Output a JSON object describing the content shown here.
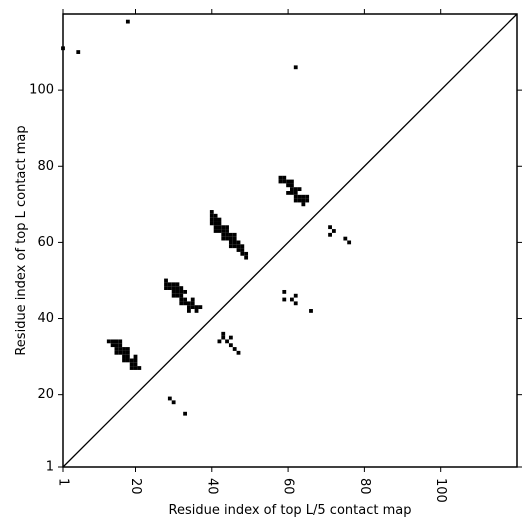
{
  "chart_data": {
    "type": "scatter",
    "xlabel": "Residue index of top L/5 contact map",
    "ylabel": "Residue index of top L contact map",
    "xlim": [
      1,
      120
    ],
    "ylim": [
      1,
      120
    ],
    "x_ticks": [
      1,
      20,
      40,
      60,
      80,
      100
    ],
    "y_ticks": [
      1,
      20,
      40,
      60,
      80,
      100
    ],
    "x_tick_labels": [
      "1",
      "20",
      "40",
      "60",
      "80",
      "100"
    ],
    "y_tick_labels": [
      "1",
      "20",
      "40",
      "60",
      "80",
      "100"
    ],
    "x_tick_rotation_deg": 90,
    "diagonal_line": true,
    "grid": false,
    "marker_color": "#000000",
    "series": [
      {
        "values": [
          [
            1,
            111
          ],
          [
            5,
            110
          ],
          [
            18,
            118
          ],
          [
            62,
            106
          ],
          [
            13,
            34
          ],
          [
            14,
            34
          ],
          [
            15,
            34
          ],
          [
            16,
            34
          ],
          [
            14,
            33
          ],
          [
            15,
            33
          ],
          [
            16,
            33
          ],
          [
            15,
            32
          ],
          [
            16,
            32
          ],
          [
            17,
            32
          ],
          [
            18,
            32
          ],
          [
            15,
            31
          ],
          [
            16,
            31
          ],
          [
            17,
            31
          ],
          [
            18,
            31
          ],
          [
            17,
            30
          ],
          [
            18,
            30
          ],
          [
            20,
            30
          ],
          [
            17,
            29
          ],
          [
            18,
            29
          ],
          [
            19,
            29
          ],
          [
            20,
            29
          ],
          [
            19,
            28
          ],
          [
            20,
            28
          ],
          [
            19,
            27
          ],
          [
            20,
            27
          ],
          [
            21,
            27
          ],
          [
            28,
            50
          ],
          [
            28,
            49
          ],
          [
            29,
            49
          ],
          [
            30,
            49
          ],
          [
            31,
            49
          ],
          [
            28,
            48
          ],
          [
            29,
            48
          ],
          [
            30,
            48
          ],
          [
            31,
            48
          ],
          [
            32,
            48
          ],
          [
            30,
            47
          ],
          [
            31,
            47
          ],
          [
            32,
            47
          ],
          [
            33,
            47
          ],
          [
            30,
            46
          ],
          [
            31,
            46
          ],
          [
            32,
            46
          ],
          [
            32,
            45
          ],
          [
            33,
            45
          ],
          [
            35,
            45
          ],
          [
            32,
            44
          ],
          [
            33,
            44
          ],
          [
            34,
            44
          ],
          [
            35,
            44
          ],
          [
            34,
            43
          ],
          [
            35,
            43
          ],
          [
            36,
            43
          ],
          [
            37,
            43
          ],
          [
            34,
            42
          ],
          [
            36,
            42
          ],
          [
            40,
            68
          ],
          [
            40,
            67
          ],
          [
            41,
            67
          ],
          [
            40,
            66
          ],
          [
            41,
            66
          ],
          [
            42,
            66
          ],
          [
            40,
            65
          ],
          [
            41,
            65
          ],
          [
            42,
            65
          ],
          [
            41,
            64
          ],
          [
            42,
            64
          ],
          [
            43,
            64
          ],
          [
            44,
            64
          ],
          [
            41,
            63
          ],
          [
            42,
            63
          ],
          [
            43,
            63
          ],
          [
            44,
            63
          ],
          [
            43,
            62
          ],
          [
            44,
            62
          ],
          [
            45,
            62
          ],
          [
            46,
            62
          ],
          [
            43,
            61
          ],
          [
            44,
            61
          ],
          [
            45,
            61
          ],
          [
            46,
            61
          ],
          [
            45,
            60
          ],
          [
            46,
            60
          ],
          [
            47,
            60
          ],
          [
            45,
            59
          ],
          [
            46,
            59
          ],
          [
            47,
            59
          ],
          [
            48,
            59
          ],
          [
            47,
            58
          ],
          [
            48,
            58
          ],
          [
            48,
            57
          ],
          [
            49,
            57
          ],
          [
            49,
            56
          ],
          [
            58,
            77
          ],
          [
            59,
            77
          ],
          [
            58,
            76
          ],
          [
            59,
            76
          ],
          [
            60,
            76
          ],
          [
            61,
            76
          ],
          [
            60,
            75
          ],
          [
            61,
            75
          ],
          [
            61,
            74
          ],
          [
            62,
            74
          ],
          [
            63,
            74
          ],
          [
            60,
            73
          ],
          [
            61,
            73
          ],
          [
            62,
            73
          ],
          [
            62,
            72
          ],
          [
            63,
            72
          ],
          [
            64,
            72
          ],
          [
            65,
            72
          ],
          [
            62,
            71
          ],
          [
            63,
            71
          ],
          [
            64,
            71
          ],
          [
            65,
            71
          ],
          [
            64,
            70
          ],
          [
            71,
            64
          ],
          [
            72,
            63
          ],
          [
            71,
            62
          ],
          [
            75,
            61
          ],
          [
            76,
            60
          ],
          [
            59,
            47
          ],
          [
            59,
            45
          ],
          [
            61,
            45
          ],
          [
            62,
            46
          ],
          [
            62,
            44
          ],
          [
            66,
            42
          ],
          [
            43,
            36
          ],
          [
            43,
            35
          ],
          [
            45,
            35
          ],
          [
            44,
            34
          ],
          [
            42,
            34
          ],
          [
            45,
            33
          ],
          [
            46,
            32
          ],
          [
            47,
            31
          ],
          [
            29,
            19
          ],
          [
            30,
            18
          ],
          [
            33,
            15
          ]
        ]
      }
    ]
  }
}
